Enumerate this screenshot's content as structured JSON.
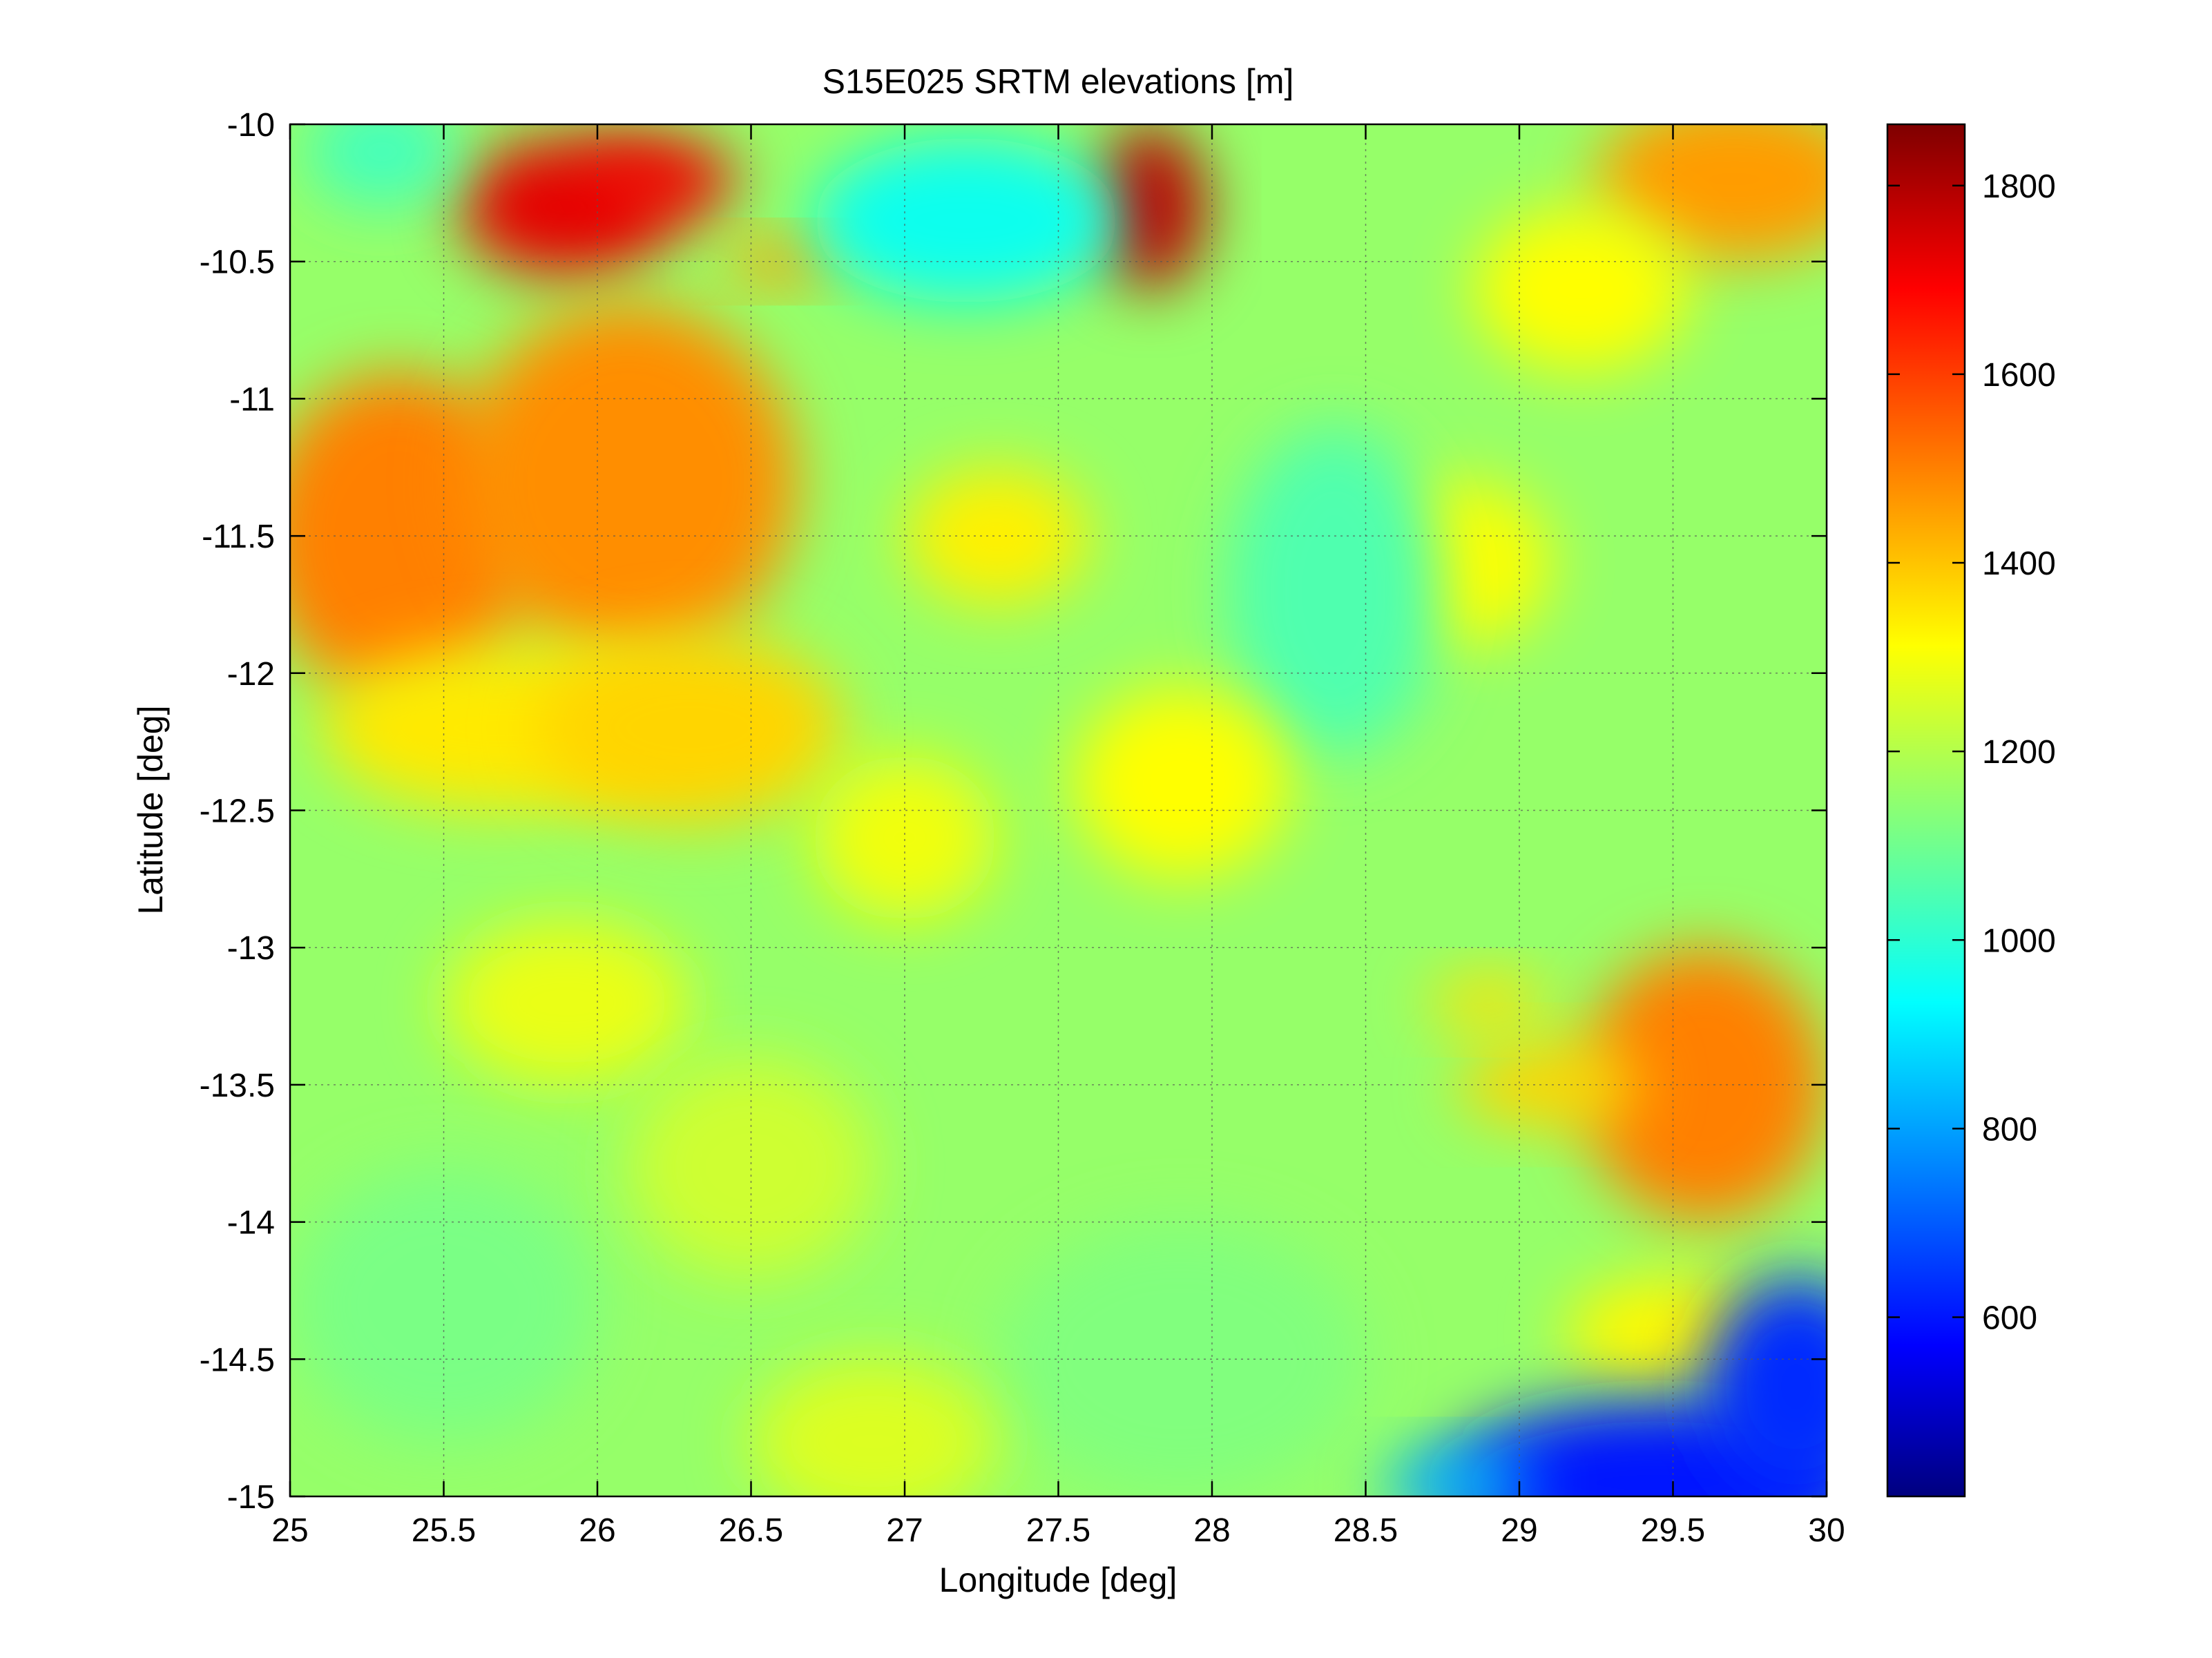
{
  "chart_data": {
    "type": "heatmap",
    "title": "S15E025 SRTM elevations [m]",
    "xlabel": "Longitude [deg]",
    "ylabel": "Latitude [deg]",
    "xlim": [
      25,
      30
    ],
    "ylim": [
      -15,
      -10
    ],
    "grid": true,
    "x_ticks": [
      "25",
      "25.5",
      "26",
      "26.5",
      "27",
      "27.5",
      "28",
      "28.5",
      "29",
      "29.5",
      "30"
    ],
    "x_tick_values": [
      25,
      25.5,
      26,
      26.5,
      27,
      27.5,
      28,
      28.5,
      29,
      29.5,
      30
    ],
    "y_ticks": [
      "-10",
      "-10.5",
      "-11",
      "-11.5",
      "-12",
      "-12.5",
      "-13",
      "-13.5",
      "-14",
      "-14.5",
      "-15"
    ],
    "y_tick_values": [
      -10,
      -10.5,
      -11,
      -11.5,
      -12,
      -12.5,
      -13,
      -13.5,
      -14,
      -14.5,
      -15
    ],
    "colorbar": {
      "colormap": "jet",
      "range": [
        410,
        1865
      ],
      "ticks": [
        "600",
        "800",
        "1000",
        "1200",
        "1400",
        "1600",
        "1800"
      ],
      "tick_values": [
        600,
        800,
        1000,
        1200,
        1400,
        1600,
        1800
      ]
    },
    "base_elevation": 1170,
    "features": [
      {
        "lon": 25.9,
        "lat": -10.3,
        "rx": 0.35,
        "ry": 0.25,
        "elev": 1720
      },
      {
        "lon": 26.2,
        "lat": -10.2,
        "rx": 0.25,
        "ry": 0.15,
        "elev": 1700
      },
      {
        "lon": 27.8,
        "lat": -10.3,
        "rx": 0.18,
        "ry": 0.3,
        "elev": 1780
      },
      {
        "lon": 25.35,
        "lat": -11.5,
        "rx": 0.45,
        "ry": 0.6,
        "elev": 1500
      },
      {
        "lon": 26.1,
        "lat": -11.3,
        "rx": 0.55,
        "ry": 0.65,
        "elev": 1480
      },
      {
        "lon": 26.6,
        "lat": -10.5,
        "rx": 0.2,
        "ry": 0.08,
        "elev": 1460
      },
      {
        "lon": 25.7,
        "lat": -12.2,
        "rx": 0.6,
        "ry": 0.3,
        "elev": 1350
      },
      {
        "lon": 26.3,
        "lat": -12.2,
        "rx": 0.5,
        "ry": 0.35,
        "elev": 1380
      },
      {
        "lon": 27.3,
        "lat": -11.5,
        "rx": 0.3,
        "ry": 0.25,
        "elev": 1340
      },
      {
        "lon": 27.2,
        "lat": -10.35,
        "rx": 0.5,
        "ry": 0.3,
        "elev": 980
      },
      {
        "lon": 25.3,
        "lat": -10.1,
        "rx": 0.25,
        "ry": 0.2,
        "elev": 1050
      },
      {
        "lon": 28.8,
        "lat": -11.6,
        "rx": 0.3,
        "ry": 0.3,
        "elev": 1320
      },
      {
        "lon": 28.4,
        "lat": -11.7,
        "rx": 0.35,
        "ry": 0.6,
        "elev": 1070
      },
      {
        "lon": 29.7,
        "lat": -10.2,
        "rx": 0.45,
        "ry": 0.3,
        "elev": 1460
      },
      {
        "lon": 29.2,
        "lat": -10.6,
        "rx": 0.35,
        "ry": 0.3,
        "elev": 1320
      },
      {
        "lon": 27.9,
        "lat": -12.4,
        "rx": 0.35,
        "ry": 0.35,
        "elev": 1320
      },
      {
        "lon": 27.0,
        "lat": -12.6,
        "rx": 0.3,
        "ry": 0.3,
        "elev": 1300
      },
      {
        "lon": 25.9,
        "lat": -13.2,
        "rx": 0.4,
        "ry": 0.3,
        "elev": 1290
      },
      {
        "lon": 29.6,
        "lat": -13.5,
        "rx": 0.4,
        "ry": 0.5,
        "elev": 1500
      },
      {
        "lon": 29.1,
        "lat": -13.5,
        "rx": 0.3,
        "ry": 0.15,
        "elev": 1380
      },
      {
        "lon": 28.9,
        "lat": -13.2,
        "rx": 0.2,
        "ry": 0.1,
        "elev": 1360
      },
      {
        "lon": 29.5,
        "lat": -14.4,
        "rx": 0.35,
        "ry": 0.2,
        "elev": 1330
      },
      {
        "lon": 29.45,
        "lat": -14.95,
        "rx": 0.7,
        "ry": 0.3,
        "elev": 620
      },
      {
        "lon": 29.9,
        "lat": -14.6,
        "rx": 0.3,
        "ry": 0.4,
        "elev": 650
      },
      {
        "lon": 28.8,
        "lat": -14.95,
        "rx": 0.25,
        "ry": 0.12,
        "elev": 850
      },
      {
        "lon": 25.5,
        "lat": -14.3,
        "rx": 0.5,
        "ry": 0.5,
        "elev": 1130
      },
      {
        "lon": 27.9,
        "lat": -14.5,
        "rx": 0.6,
        "ry": 0.5,
        "elev": 1140
      },
      {
        "lon": 26.9,
        "lat": -14.8,
        "rx": 0.4,
        "ry": 0.3,
        "elev": 1270
      },
      {
        "lon": 26.5,
        "lat": -13.8,
        "rx": 0.4,
        "ry": 0.4,
        "elev": 1250
      }
    ]
  }
}
